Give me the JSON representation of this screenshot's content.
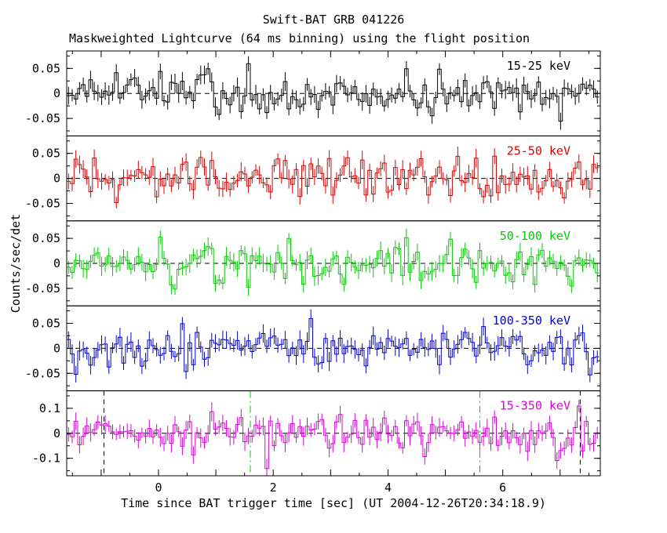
{
  "header": {
    "title": "Swift-BAT GRB 041226",
    "subtitle": "Maskweighted Lightcurve (64 ms binning) using the flight position"
  },
  "axes": {
    "ylabel": "Counts/sec/det",
    "xlabel": "Time since BAT trigger time [sec] (UT 2004-12-26T20:34:18.9)",
    "xrange": [
      -1.6,
      7.7
    ],
    "xticks": [
      {
        "value": 0,
        "label": "0"
      },
      {
        "value": 2,
        "label": "2"
      },
      {
        "value": 4,
        "label": "4"
      },
      {
        "value": 6,
        "label": "6"
      }
    ],
    "x_minor_tick_step": 0.5
  },
  "chart_data": {
    "type": "line",
    "subtype": "histogram-step lightcurve with error bars, 5 stacked panels",
    "title": "Swift-BAT GRB 041226",
    "subtitle": "Maskweighted Lightcurve (64 ms binning) using the flight position",
    "xlabel": "Time since BAT trigger time [sec] (UT 2004-12-26T20:34:18.9)",
    "ylabel": "Counts/sec/det",
    "x_binning_sec": 0.064,
    "x_range_sec": [
      -1.6,
      7.7
    ],
    "grid": false,
    "legend": "none (per-panel inline energy labels, upper right)",
    "panels": [
      {
        "label": "15-25 keV",
        "color": "#000000",
        "ylim": [
          -0.085,
          0.085
        ],
        "y_minor_step": 0.025,
        "zero_line_dashed": true,
        "yticks": [
          {
            "v": 0.05,
            "label": "0.05"
          },
          {
            "v": 0,
            "label": "0"
          },
          {
            "v": -0.05,
            "label": "-0.05"
          }
        ],
        "noise": {
          "mean": 0,
          "sigma": 0.02,
          "error_bar": 0.015,
          "seed": 90817
        }
      },
      {
        "label": "25-50 keV",
        "color": "#dd0000",
        "ylim": [
          -0.085,
          0.085
        ],
        "y_minor_step": 0.025,
        "zero_line_dashed": true,
        "yticks": [
          {
            "v": 0.05,
            "label": "0.05"
          },
          {
            "v": 0,
            "label": "0"
          },
          {
            "v": -0.05,
            "label": "-0.05"
          }
        ],
        "noise": {
          "mean": 0,
          "sigma": 0.02,
          "error_bar": 0.015,
          "seed": 24601
        }
      },
      {
        "label": "50-100 keV",
        "color": "#00cc00",
        "ylim": [
          -0.085,
          0.085
        ],
        "y_minor_step": 0.025,
        "zero_line_dashed": true,
        "yticks": [
          {
            "v": 0.05,
            "label": "0.05"
          },
          {
            "v": 0,
            "label": "0"
          },
          {
            "v": -0.05,
            "label": "-0.05"
          }
        ],
        "noise": {
          "mean": 0,
          "sigma": 0.02,
          "error_bar": 0.015,
          "seed": 55511
        }
      },
      {
        "label": "100-350 keV",
        "color": "#0000dd",
        "ylim": [
          -0.085,
          0.085
        ],
        "y_minor_step": 0.025,
        "zero_line_dashed": true,
        "yticks": [
          {
            "v": 0.05,
            "label": "0.05"
          },
          {
            "v": 0,
            "label": "0"
          },
          {
            "v": -0.05,
            "label": "-0.05"
          }
        ],
        "noise": {
          "mean": 0,
          "sigma": 0.02,
          "error_bar": 0.015,
          "seed": 73313
        }
      },
      {
        "label": "15-350 keV",
        "color": "#dd00dd",
        "ylim": [
          -0.17,
          0.17
        ],
        "y_minor_step": 0.05,
        "zero_line_dashed": true,
        "yticks": [
          {
            "v": 0.1,
            "label": "0.1"
          },
          {
            "v": 0,
            "label": "0"
          },
          {
            "v": -0.1,
            "label": "-0.1"
          }
        ],
        "noise": {
          "mean": 0,
          "sigma": 0.038,
          "error_bar": 0.03,
          "seed": 31415
        },
        "vertical_markers": [
          {
            "x": -0.95,
            "color": "#000000",
            "style": "dashed"
          },
          {
            "x": 1.6,
            "color": "#00cc00",
            "style": "dash-dot"
          },
          {
            "x": 5.6,
            "color": "#00cc00",
            "style": "dash-dot"
          },
          {
            "x": 7.35,
            "color": "#000000",
            "style": "dashed"
          }
        ]
      }
    ],
    "values_note": "All five panels show zero-mean noise fluctuating roughly within the y-axis range with no visible burst; individual 64 ms bin values are not readable from the pixels, so each series is reproduced statistically from the seeded noise parameters (mean, sigma, error_bar) given per panel."
  }
}
